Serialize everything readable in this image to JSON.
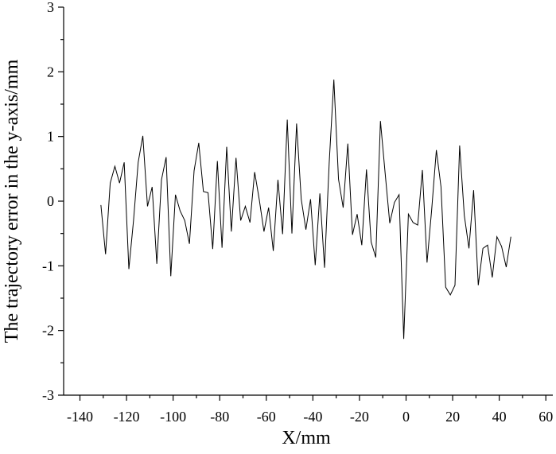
{
  "chart_data": {
    "type": "line",
    "xlabel": "X/mm",
    "ylabel": "The trajectory error in the y-axis/mm",
    "x": [
      -131,
      -129,
      -127,
      -125,
      -123,
      -121,
      -119,
      -117,
      -115,
      -113,
      -111,
      -109,
      -107,
      -105,
      -103,
      -101,
      -99,
      -97,
      -95,
      -93,
      -91,
      -89,
      -87,
      -85,
      -83,
      -81,
      -79,
      -77,
      -75,
      -73,
      -71,
      -69,
      -67,
      -65,
      -63,
      -61,
      -59,
      -57,
      -55,
      -53,
      -51,
      -49,
      -47,
      -45,
      -43,
      -41,
      -39,
      -37,
      -35,
      -33,
      -31,
      -29,
      -27,
      -25,
      -23,
      -21,
      -19,
      -17,
      -15,
      -13,
      -11,
      -9,
      -7,
      -5,
      -3,
      -1,
      1,
      3,
      5,
      7,
      9,
      11,
      13,
      15,
      17,
      19,
      21,
      23,
      25,
      27,
      29,
      31,
      33,
      35,
      37,
      39,
      41,
      43,
      45
    ],
    "series": [
      {
        "color": "#000000",
        "values": [
          -0.06,
          -0.82,
          0.28,
          0.54,
          0.28,
          0.6,
          -1.05,
          -0.3,
          0.6,
          1.01,
          -0.08,
          0.22,
          -0.97,
          0.33,
          0.68,
          -1.16,
          0.1,
          -0.15,
          -0.3,
          -0.66,
          0.47,
          0.9,
          0.15,
          0.13,
          -0.74,
          0.62,
          -0.72,
          0.84,
          -0.47,
          0.67,
          -0.3,
          -0.08,
          -0.33,
          0.45,
          0.02,
          -0.47,
          -0.1,
          -0.77,
          0.33,
          -0.51,
          1.26,
          -0.5,
          1.2,
          0.03,
          -0.44,
          0.03,
          -0.99,
          0.12,
          -1.03,
          0.59,
          1.88,
          0.34,
          -0.1,
          0.89,
          -0.52,
          -0.2,
          -0.68,
          0.49,
          -0.63,
          -0.87,
          1.24,
          0.44,
          -0.34,
          -0.02,
          0.1,
          -2.13,
          -0.2,
          -0.33,
          -0.37,
          0.48,
          -0.95,
          -0.13,
          0.79,
          0.22,
          -1.33,
          -1.45,
          -1.3,
          0.86,
          -0.22,
          -0.73,
          0.17,
          -1.3,
          -0.73,
          -0.68,
          -1.18,
          -0.55,
          -0.7,
          -1.02,
          -0.55
        ]
      }
    ],
    "xlim": [
      -147,
      63
    ],
    "xticks": [
      -140,
      -120,
      -100,
      -80,
      -60,
      -40,
      -20,
      0,
      20,
      40,
      60
    ],
    "ylim": [
      -3,
      3
    ],
    "yticks": [
      -3,
      -2,
      -1,
      0,
      1,
      2,
      3
    ],
    "grid": false
  }
}
